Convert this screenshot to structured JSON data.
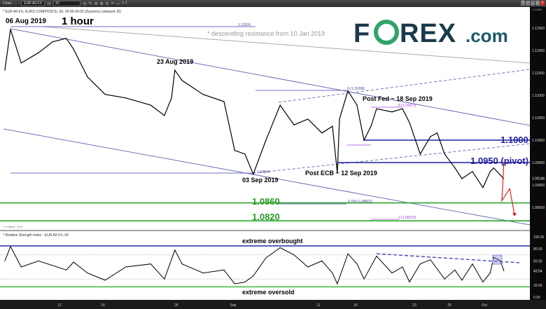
{
  "toolbar": {
    "app_label": "Chart",
    "symbol": "EUR A0-FX",
    "interval": "60",
    "icons": [
      "clock-icon",
      "clock-icon",
      "pencil-icon",
      "zoom-out-icon",
      "zoom-in-icon",
      "target-icon",
      "link-icon",
      "comment-icon",
      "twitter-icon",
      "facebook-icon"
    ]
  },
  "window_buttons": [
    "?",
    "□",
    "_",
    "▢",
    "×"
  ],
  "logo": {
    "text": "FOREX.com",
    "brand_color": "#1b3a4b",
    "globe_color": "#2fa36b"
  },
  "chart_data": [
    {
      "type": "line",
      "title": "1 hour",
      "legend": "* EUR A0-FX, EURO COMPOSITE, 60, 00:00-00:00 (Dynamic) (delayed 15)",
      "ylim": [
        1.08,
        1.127
      ],
      "yticks": [
        "1.12500",
        "1.12000",
        "1.11500",
        "1.11000",
        "1.10500",
        "1.10000",
        "1.09500",
        "1.09000",
        "1.08500"
      ],
      "last_price": "1.09146",
      "top_price": "1.12865",
      "xticks": [
        "12",
        "16",
        "26",
        "Sep",
        "11",
        "16",
        "23",
        "26",
        "Oct"
      ],
      "series": [
        {
          "color": "#000000",
          "points": [
            [
              "2019-08-05T14:00",
              1.1156
            ],
            [
              "2019-08-06T06:00",
              1.1247
            ],
            [
              "2019-08-07T12:00",
              1.1172
            ],
            [
              "2019-08-09T13:00",
              1.1195
            ],
            [
              "2019-08-11T04:00",
              1.1219
            ],
            [
              "2019-08-12T15:00",
              1.1227
            ],
            [
              "2019-08-13T07:00",
              1.1203
            ],
            [
              "2019-08-14T14:00",
              1.1141
            ],
            [
              "2019-08-16T07:00",
              1.1102
            ],
            [
              "2019-08-19T03:00",
              1.1094
            ],
            [
              "2019-08-22T12:00",
              1.1078
            ],
            [
              "2019-08-24T09:00",
              1.1055
            ],
            [
              "2019-08-25T08:00",
              1.1094
            ],
            [
              "2019-08-25T19:00",
              1.1156
            ],
            [
              "2019-08-26T17:00",
              1.1133
            ],
            [
              "2019-08-29T07:00",
              1.1102
            ],
            [
              "2019-08-31T21:00",
              1.1086
            ],
            [
              "2019-09-02T04:00",
              1.0977
            ],
            [
              "2019-09-03T06:00",
              1.0969
            ],
            [
              "2019-09-04T03:00",
              1.0924
            ],
            [
              "2019-09-05T11:00",
              1.1
            ],
            [
              "2019-09-06T23:00",
              1.1078
            ],
            [
              "2019-09-08T10:00",
              1.1034
            ],
            [
              "2019-09-09T21:00",
              1.1047
            ],
            [
              "2019-09-11T11:00",
              1.1016
            ],
            [
              "2019-09-12T21:00",
              1.1031
            ],
            [
              "2019-09-13T13:00",
              1.0927
            ],
            [
              "2019-09-13T20:00",
              1.1047
            ],
            [
              "2019-09-14T23:00",
              1.111
            ],
            [
              "2019-09-16T04:00",
              1.1078
            ],
            [
              "2019-09-17T00:00",
              1.1
            ],
            [
              "2019-09-17T20:00",
              1.1031
            ],
            [
              "2019-09-18T12:00",
              1.107
            ],
            [
              "2019-09-20T08:00",
              1.1063
            ],
            [
              "2019-09-21T14:00",
              1.107
            ],
            [
              "2019-09-22T10:00",
              1.1039
            ],
            [
              "2019-09-23T12:00",
              1.0969
            ],
            [
              "2019-09-24T09:00",
              1.1008
            ],
            [
              "2019-09-24T23:00",
              1.1016
            ],
            [
              "2019-09-25T14:00",
              1.0969
            ],
            [
              "2019-09-26T19:00",
              1.0938
            ],
            [
              "2019-09-27T19:00",
              1.0914
            ],
            [
              "2019-09-29T07:00",
              1.093
            ],
            [
              "2019-09-30T19:00",
              1.0894
            ],
            [
              "2019-10-01T12:00",
              1.093
            ],
            [
              "2019-10-01T19:00",
              1.0938
            ],
            [
              "2019-10-02T09:00",
              1.0922
            ],
            [
              "2019-10-02T16:00",
              1.0914
            ]
          ]
        }
      ],
      "projection": {
        "color": "#e02020",
        "points": [
          [
            "2019-10-02T16:00",
            1.095
          ],
          [
            "2019-10-02T12:00",
            1.0865
          ],
          [
            "2019-10-03T04:00",
            1.0892
          ],
          [
            "2019-10-03T14:00",
            1.0833
          ]
        ]
      },
      "levels": [
        {
          "label": "1.1000",
          "value": 1.1,
          "color": "#1f1fa0"
        },
        {
          "label": "1.0950 (pivot)",
          "value": 1.095,
          "color": "#1f1fa0"
        },
        {
          "label": "1.0860",
          "value": 1.086,
          "color": "#2aa82a"
        },
        {
          "label": "1.0820",
          "value": 1.082,
          "color": "#2aa82a"
        }
      ],
      "fib_labels": [
        "1.12510",
        "0 (1.11096)",
        "8 (1.10973)",
        "1.09244",
        "0.764 (1.08601)",
        "2 (1.08223)"
      ],
      "annotations": [
        "06 Aug 2019",
        "23 Aug 2019",
        "03 Sep 2019",
        "Post ECB ~ 12 Sep 2019",
        "Post Fed ~ 18 Sep 2019",
        "* descending resistance from 10 Jan 2019"
      ],
      "source": "© eSignal, 2019"
    },
    {
      "type": "line",
      "title": "* Relative Strength Index - EUR A0-FX, 60",
      "ylim": [
        0,
        100
      ],
      "yticks": [
        "100.00",
        "80.00",
        "60.00",
        "20.00",
        "0.00"
      ],
      "last_value": "43.54",
      "overbought": {
        "label": "extreme overbought",
        "value": 85
      },
      "oversold": {
        "label": "extreme oversold",
        "value": 17
      },
      "guides": [
        70,
        30
      ],
      "series": [
        {
          "color": "#000000",
          "points": [
            [
              "2019-08-05T14:00",
              60
            ],
            [
              "2019-08-06T06:00",
              84
            ],
            [
              "2019-08-07T12:00",
              50
            ],
            [
              "2019-08-09T13:00",
              60
            ],
            [
              "2019-08-12T15:00",
              45
            ],
            [
              "2019-08-13T07:00",
              58
            ],
            [
              "2019-08-14T14:00",
              40
            ],
            [
              "2019-08-16T07:00",
              28
            ],
            [
              "2019-08-19T03:00",
              50
            ],
            [
              "2019-08-22T12:00",
              55
            ],
            [
              "2019-08-24T09:00",
              30
            ],
            [
              "2019-08-25T19:00",
              78
            ],
            [
              "2019-08-26T17:00",
              55
            ],
            [
              "2019-08-29T07:00",
              40
            ],
            [
              "2019-08-31T21:00",
              45
            ],
            [
              "2019-09-02T04:00",
              22
            ],
            [
              "2019-09-03T06:00",
              25
            ],
            [
              "2019-09-04T03:00",
              35
            ],
            [
              "2019-09-05T11:00",
              65
            ],
            [
              "2019-09-06T23:00",
              82
            ],
            [
              "2019-09-08T10:00",
              70
            ],
            [
              "2019-09-09T21:00",
              50
            ],
            [
              "2019-09-11T11:00",
              60
            ],
            [
              "2019-09-12T21:00",
              40
            ],
            [
              "2019-09-13T13:00",
              22
            ],
            [
              "2019-09-14T23:00",
              72
            ],
            [
              "2019-09-16T04:00",
              55
            ],
            [
              "2019-09-17T00:00",
              30
            ],
            [
              "2019-09-18T12:00",
              68
            ],
            [
              "2019-09-20T08:00",
              40
            ],
            [
              "2019-09-21T14:00",
              50
            ],
            [
              "2019-09-22T10:00",
              25
            ],
            [
              "2019-09-23T12:00",
              55
            ],
            [
              "2019-09-24T09:00",
              62
            ],
            [
              "2019-09-25T14:00",
              30
            ],
            [
              "2019-09-26T19:00",
              45
            ],
            [
              "2019-09-27T19:00",
              28
            ],
            [
              "2019-09-29T07:00",
              55
            ],
            [
              "2019-09-30T19:00",
              25
            ],
            [
              "2019-10-01T12:00",
              40
            ],
            [
              "2019-10-01T19:00",
              66
            ],
            [
              "2019-10-02T09:00",
              60
            ],
            [
              "2019-10-02T16:00",
              43.54
            ]
          ]
        }
      ],
      "trendline": [
        [
          "2019-09-18T12:00",
          72
        ],
        [
          "2019-10-04T00:00",
          57
        ]
      ]
    }
  ]
}
